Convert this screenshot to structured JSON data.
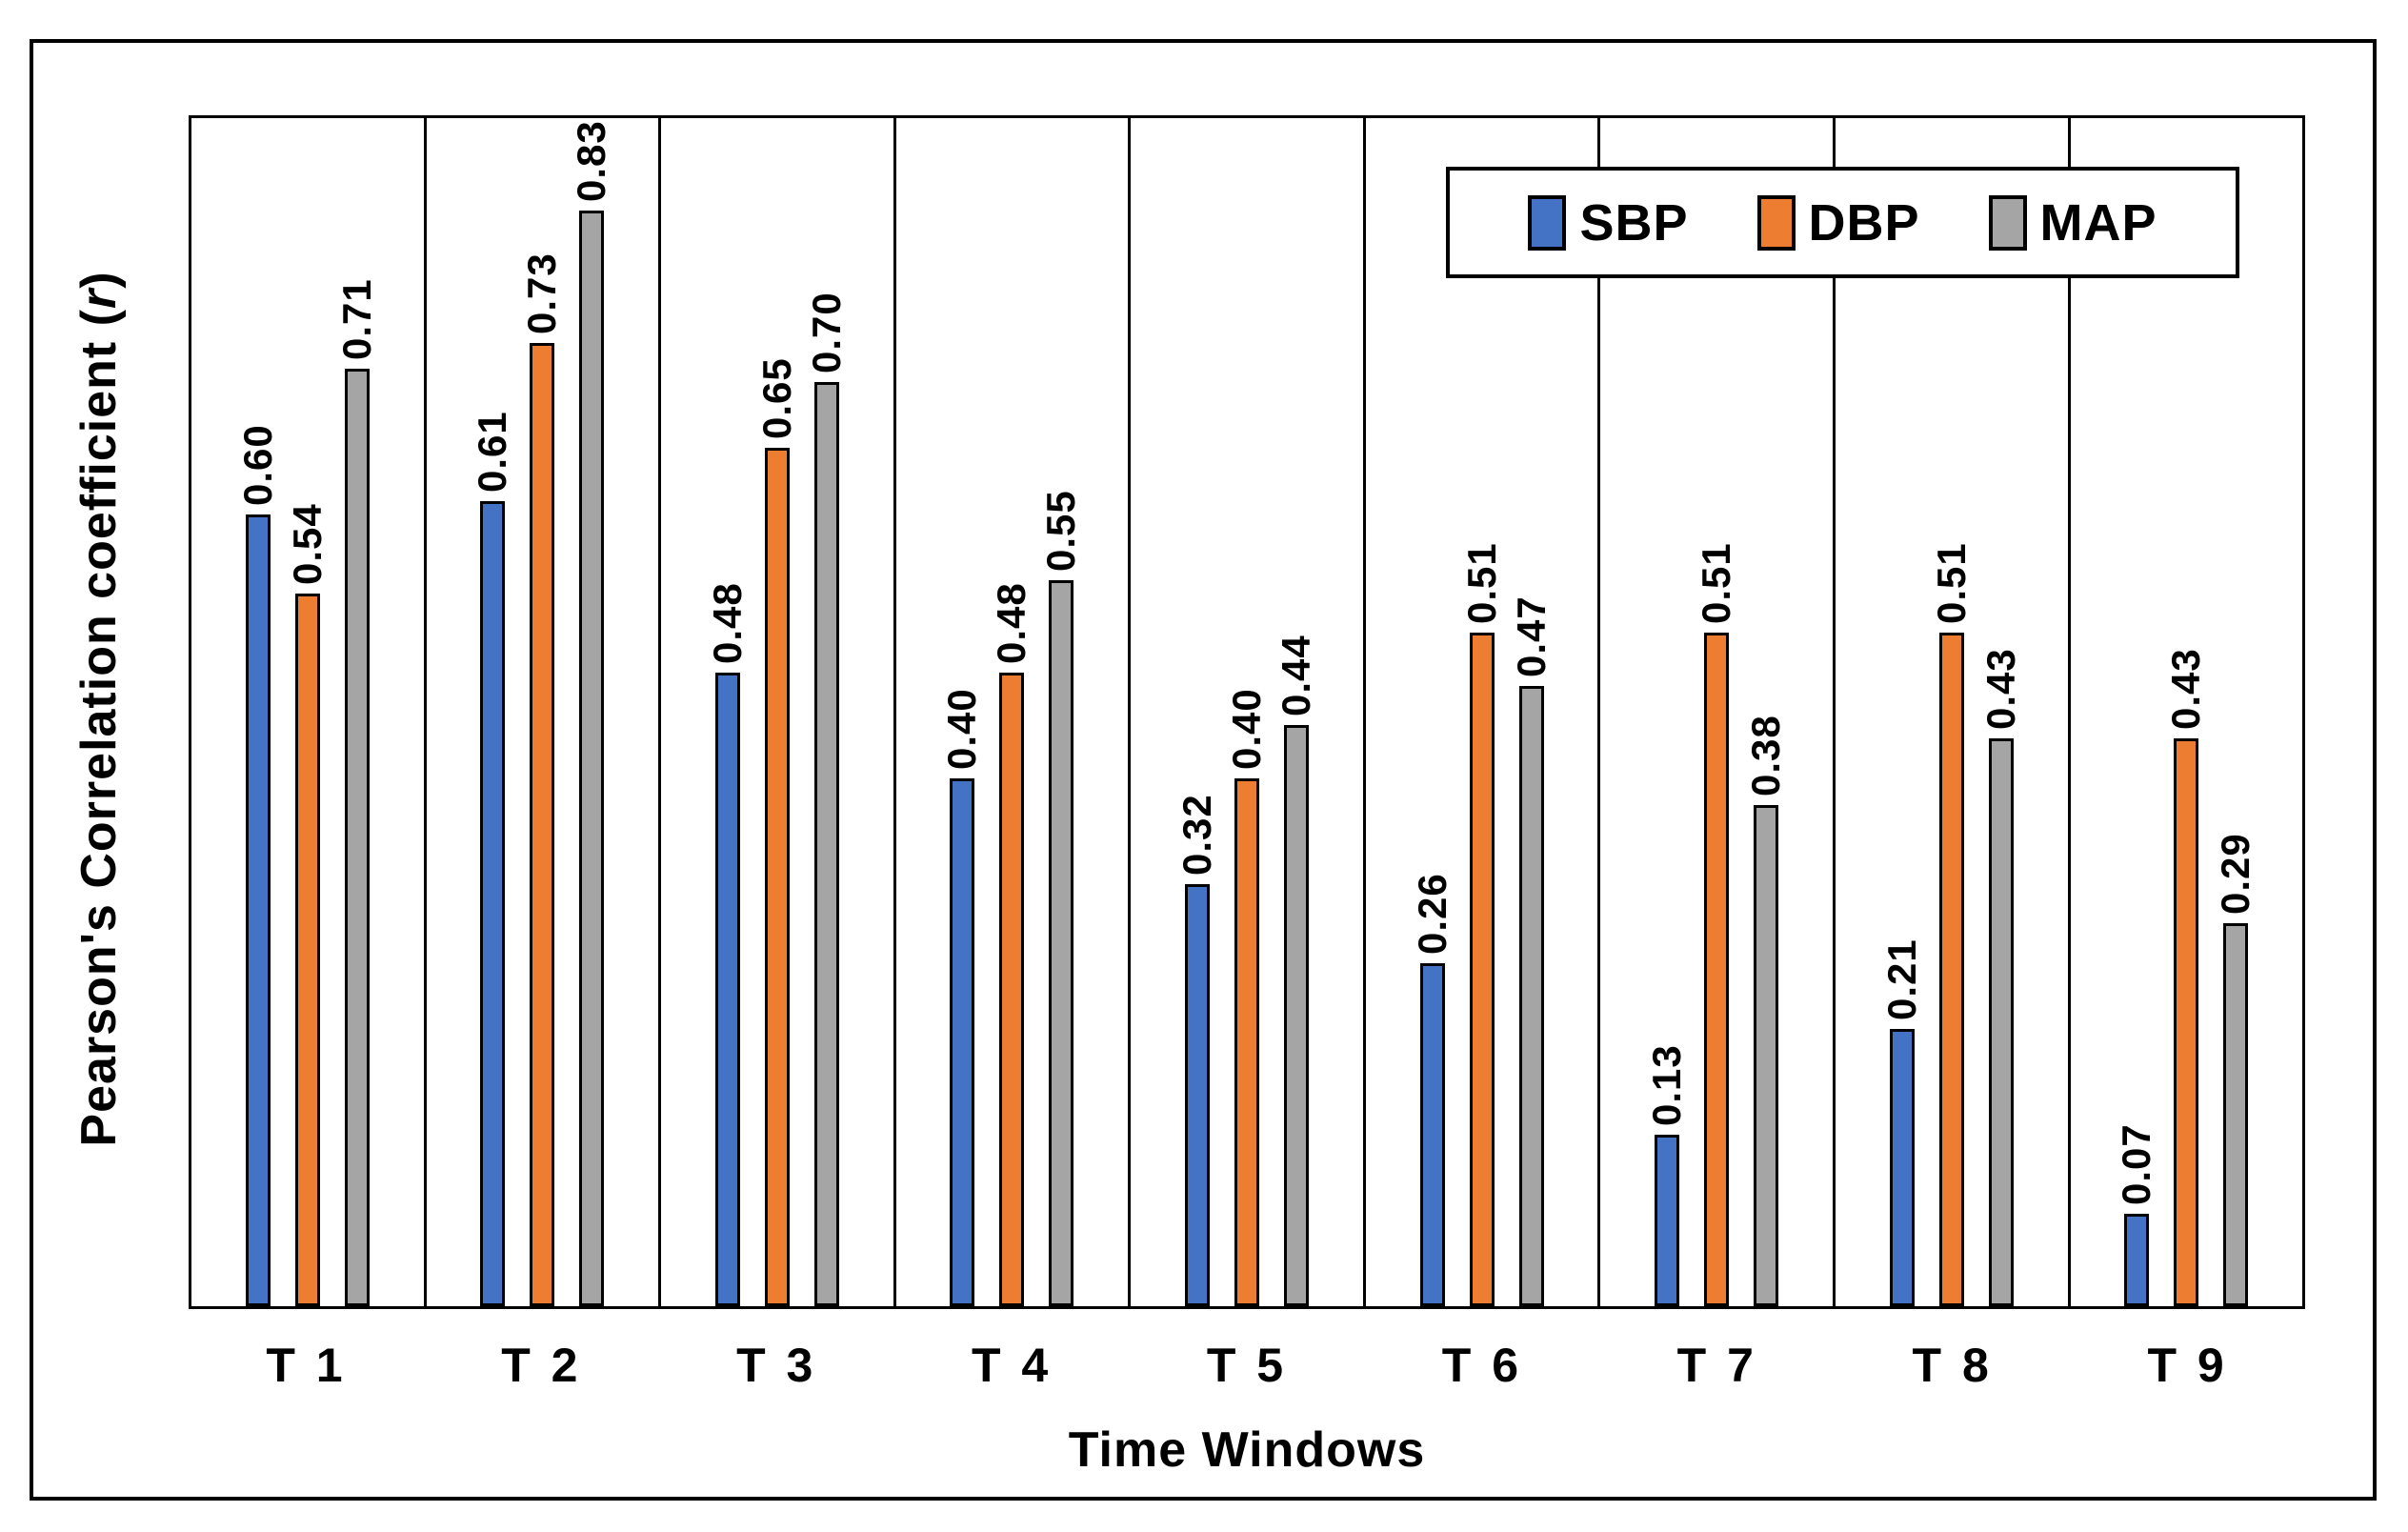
{
  "axes": {
    "y_title_prefix": "Pearson's Correlation coefficient (",
    "y_title_r": "r",
    "y_title_suffix": ")",
    "x_title": "Time Windows"
  },
  "legend": {
    "position": "top-right-inside",
    "items": [
      {
        "label": "SBP",
        "color": "#4472C4"
      },
      {
        "label": "DBP",
        "color": "#ED7D31"
      },
      {
        "label": "MAP",
        "color": "#A5A5A5"
      }
    ]
  },
  "chart_data": {
    "type": "bar",
    "title": "",
    "xlabel": "Time Windows",
    "ylabel": "Pearson's Correlation coefficient (r)",
    "categories": [
      "T 1",
      "T 2",
      "T 3",
      "T 4",
      "T 5",
      "T 6",
      "T 7",
      "T 8",
      "T 9"
    ],
    "series": [
      {
        "name": "SBP",
        "color": "#4472C4",
        "values": [
          0.6,
          0.61,
          0.48,
          0.4,
          0.32,
          0.26,
          0.13,
          0.21,
          0.07
        ]
      },
      {
        "name": "DBP",
        "color": "#ED7D31",
        "values": [
          0.54,
          0.73,
          0.65,
          0.48,
          0.4,
          0.51,
          0.51,
          0.51,
          0.43
        ]
      },
      {
        "name": "MAP",
        "color": "#A5A5A5",
        "values": [
          0.71,
          0.83,
          0.7,
          0.55,
          0.44,
          0.47,
          0.38,
          0.43,
          0.29
        ]
      }
    ],
    "ylim": [
      0,
      0.9
    ],
    "y_ticks_visible": false,
    "value_labels": {
      "visible": true,
      "format": "two-decimals",
      "rotation_deg": 90
    },
    "grid": "vertical-category-separators",
    "legend_position": "top-right-inside",
    "bar_outline_color": "#000000"
  }
}
